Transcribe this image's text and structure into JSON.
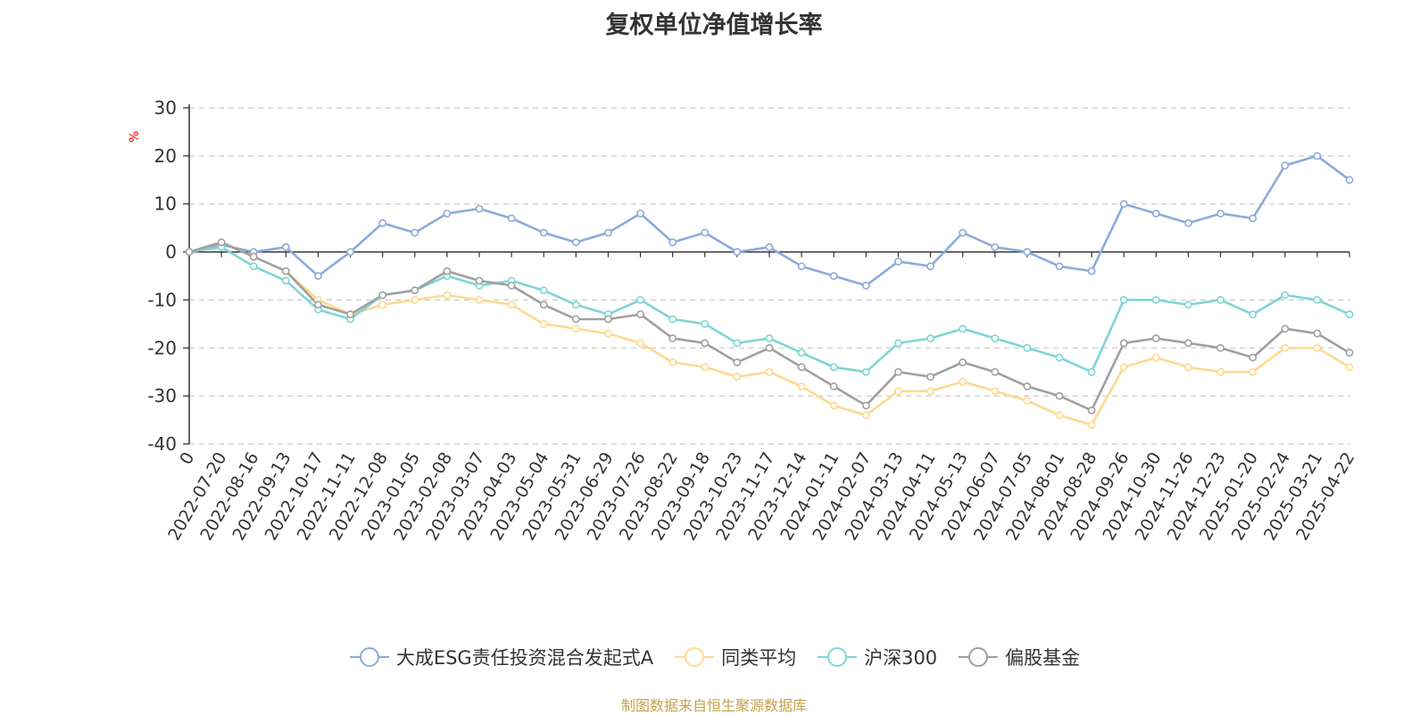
{
  "chart_data": {
    "type": "line",
    "title": "复权单位净值增长率",
    "ylabel": "%",
    "ylim": [
      -40,
      30
    ],
    "yticks": [
      30,
      20,
      10,
      0,
      -10,
      -20,
      -30,
      -40
    ],
    "grid": true,
    "legend_position": "bottom",
    "x": [
      "0",
      "2022-07-20",
      "2022-08-16",
      "2022-09-13",
      "2022-10-17",
      "2022-11-11",
      "2022-12-08",
      "2023-01-05",
      "2023-02-08",
      "2023-03-07",
      "2023-04-03",
      "2023-05-04",
      "2023-05-31",
      "2023-06-29",
      "2023-07-26",
      "2023-08-22",
      "2023-09-18",
      "2023-10-23",
      "2023-11-17",
      "2023-12-14",
      "2024-01-11",
      "2024-02-07",
      "2024-03-13",
      "2024-04-11",
      "2024-05-13",
      "2024-06-07",
      "2024-07-05",
      "2024-08-01",
      "2024-08-28",
      "2024-09-26",
      "2024-10-30",
      "2024-11-26",
      "2024-12-23",
      "2025-01-20",
      "2025-02-24",
      "2025-03-21",
      "2025-04-22"
    ],
    "series": [
      {
        "name": "大成ESG责任投资混合发起式A",
        "color": "#8eaadb",
        "values": [
          0,
          1.5,
          0,
          1,
          -5,
          0,
          6,
          4,
          8,
          9,
          7,
          4,
          2,
          4,
          8,
          2,
          4,
          0,
          1,
          -3,
          -5,
          -7,
          -2,
          -3,
          4,
          1,
          0,
          -3,
          -4,
          10,
          8,
          6,
          8,
          7,
          18,
          20,
          15
        ]
      },
      {
        "name": "同类平均",
        "color": "#ffd990",
        "values": [
          0,
          2,
          -1,
          -4,
          -10,
          -13,
          -11,
          -10,
          -9,
          -10,
          -11,
          -15,
          -16,
          -17,
          -19,
          -23,
          -24,
          -26,
          -25,
          -28,
          -32,
          -34,
          -29,
          -29,
          -27,
          -29,
          -31,
          -34,
          -36,
          -24,
          -22,
          -24,
          -25,
          -25,
          -20,
          -20,
          -24
        ]
      },
      {
        "name": "沪深300",
        "color": "#7fd5d5",
        "values": [
          0,
          1,
          -3,
          -6,
          -12,
          -14,
          -9,
          -8,
          -5,
          -7,
          -6,
          -8,
          -11,
          -13,
          -10,
          -14,
          -15,
          -19,
          -18,
          -21,
          -24,
          -25,
          -19,
          -18,
          -16,
          -18,
          -20,
          -22,
          -25,
          -10,
          -10,
          -11,
          -10,
          -13,
          -9,
          -10,
          -13
        ]
      },
      {
        "name": "偏股基金",
        "color": "#a0a0a0",
        "values": [
          0,
          2,
          -1,
          -4,
          -11,
          -13,
          -9,
          -8,
          -4,
          -6,
          -7,
          -11,
          -14,
          -14,
          -13,
          -18,
          -19,
          -23,
          -20,
          -24,
          -28,
          -32,
          -25,
          -26,
          -23,
          -25,
          -28,
          -30,
          -33,
          -19,
          -18,
          -19,
          -20,
          -22,
          -16,
          -17,
          -21
        ]
      }
    ]
  },
  "source": "制图数据来自恒生聚源数据库"
}
